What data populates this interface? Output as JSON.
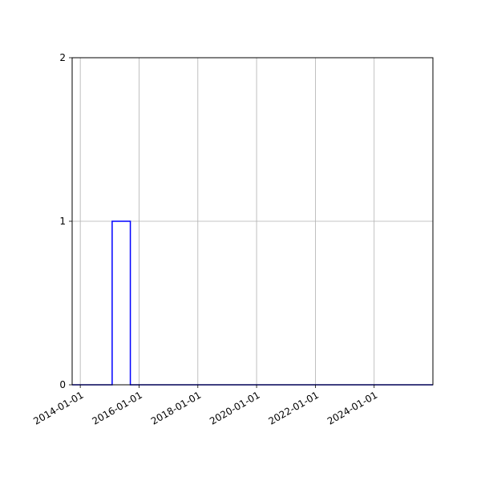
{
  "chart_data": {
    "type": "line",
    "style": "step-histogram",
    "title": "",
    "xlabel": "",
    "ylabel": "",
    "x_scale": "date",
    "xlim": [
      "2013-09-22",
      "2025-12-31"
    ],
    "ylim": [
      0,
      2
    ],
    "grid": true,
    "x_ticks": [
      "2014-01-01",
      "2016-01-01",
      "2018-01-01",
      "2020-01-01",
      "2022-01-01",
      "2024-01-01"
    ],
    "y_ticks": [
      "0",
      "1",
      "2"
    ],
    "series": [
      {
        "color": "#0000ff",
        "bin_edges": [
          "2013-09-22",
          "2015-02-01",
          "2015-09-15",
          "2025-12-31"
        ],
        "counts": [
          0,
          1,
          0
        ]
      }
    ]
  }
}
